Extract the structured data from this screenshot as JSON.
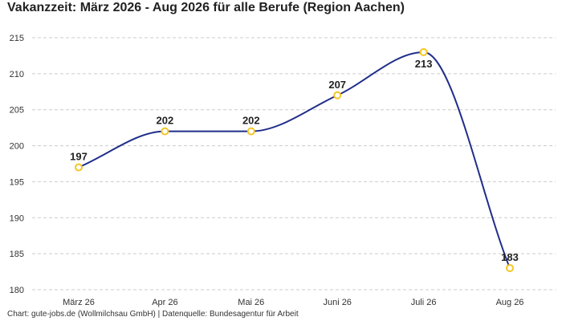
{
  "title": "Vakanzzeit: März 2026 - Aug 2026 für alle Berufe (Region Aachen)",
  "footer": "Chart: gute-jobs.de (Wollmilchsau GmbH) | Datenquelle: Bundesagentur für Arbeit",
  "colors": {
    "line": "#1f2d8a",
    "marker": "#f3c623",
    "grid": "#cccccc"
  },
  "chart_data": {
    "type": "line",
    "title": "Vakanzzeit: März 2026 - Aug 2026 für alle Berufe (Region Aachen)",
    "categories": [
      "März 26",
      "Apr 26",
      "Mai 26",
      "Juni 26",
      "Juli 26",
      "Aug 26"
    ],
    "series": [
      {
        "values": [
          197,
          202,
          202,
          207,
          213,
          183
        ]
      }
    ],
    "ylim": [
      180,
      215
    ],
    "yticks": [
      180,
      185,
      190,
      195,
      200,
      205,
      210,
      215
    ],
    "grid": true,
    "data_labels": true
  }
}
